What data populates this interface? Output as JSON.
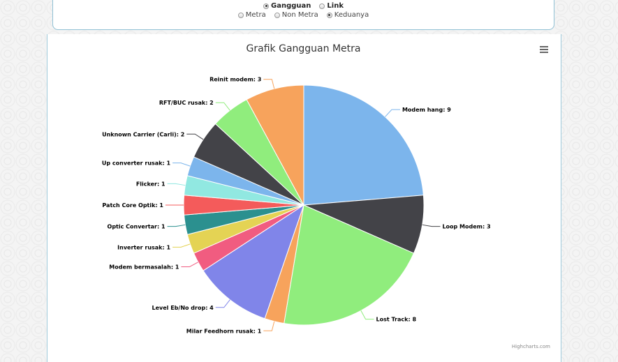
{
  "filters": {
    "type_options": [
      {
        "label": "Gangguan",
        "checked": true
      },
      {
        "label": "Link",
        "checked": false
      }
    ],
    "scope_options": [
      {
        "label": "Metra",
        "checked": false
      },
      {
        "label": "Non Metra",
        "checked": false
      },
      {
        "label": "Keduanya",
        "checked": true
      }
    ]
  },
  "chart_data": {
    "type": "pie",
    "title": "Grafik Gangguan Metra",
    "slices": [
      {
        "name": "Modem hang",
        "value": 9,
        "color": "#7cb5ec"
      },
      {
        "name": "Loop Modem",
        "value": 3,
        "color": "#434348"
      },
      {
        "name": "Lost Track",
        "value": 8,
        "color": "#90ed7d"
      },
      {
        "name": "Milar Feedhorn rusak",
        "value": 1,
        "color": "#f7a35c"
      },
      {
        "name": "Level Eb/No drop",
        "value": 4,
        "color": "#8085e9"
      },
      {
        "name": "Modem bermasalah",
        "value": 1,
        "color": "#f15c80"
      },
      {
        "name": "Inverter rusak",
        "value": 1,
        "color": "#e4d354"
      },
      {
        "name": "Optic Convertar",
        "value": 1,
        "color": "#2b908f"
      },
      {
        "name": "Patch Core Optik",
        "value": 1,
        "color": "#f45b5b"
      },
      {
        "name": "Flicker",
        "value": 1,
        "color": "#91e8e1"
      },
      {
        "name": "Up converter rusak",
        "value": 1,
        "color": "#7cb5ec"
      },
      {
        "name": "Unknown Carrier (Carli)",
        "value": 2,
        "color": "#434348"
      },
      {
        "name": "RFT/BUC rusak",
        "value": 2,
        "color": "#90ed7d"
      },
      {
        "name": "Reinit modem",
        "value": 3,
        "color": "#f7a35c"
      }
    ]
  },
  "menu_icon": "hamburger-menu-icon",
  "credit": "Highcharts.com"
}
